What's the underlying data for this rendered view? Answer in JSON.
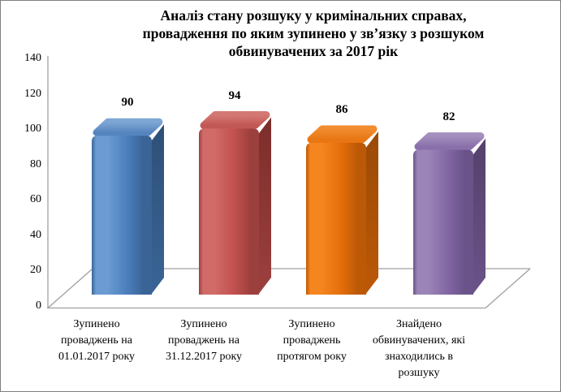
{
  "window": {
    "kind": "static-chart-image"
  },
  "chart_data": {
    "type": "bar",
    "effect": "3d",
    "title": "Аналіз стану розшуку у кримінальних справах, провадження по яким зупинено у зв’язку з розшуком обвинувачених за 2017 рік",
    "title_lines": [
      "Аналіз стану розшуку у кримінальних справах,",
      "провадження по яким зупинено у зв’язку з розшуком",
      "обвинувачених за 2017 рік"
    ],
    "categories": [
      "Зупинено проваджень на 01.01.2017 року",
      "Зупинено проваджень на 31.12.2017 року",
      "Зупинено проваджень протягом року",
      "Знайдено обвинувачених, які знаходились в розшуку"
    ],
    "values": [
      90,
      94,
      86,
      82
    ],
    "value_labels": [
      "90",
      "94",
      "86",
      "82"
    ],
    "xlabel": "",
    "ylabel": "",
    "ylim": [
      0,
      140
    ],
    "yticks": [
      0,
      20,
      40,
      60,
      80,
      100,
      120,
      140
    ],
    "grid": false,
    "legend": "none",
    "axis_line_color": "#A0A0A0",
    "text_color": "#000000",
    "bar_colors": [
      {
        "name": "blue",
        "front": "#4A7EBB",
        "light": "#6B9BD2",
        "dark": "#3A6496",
        "side": "#2E5077",
        "top": "#7FA7D4",
        "top_dark": "#5585BE"
      },
      {
        "name": "red",
        "front": "#C0504D",
        "light": "#D06B68",
        "dark": "#9C403E",
        "side": "#7C2D2B",
        "top": "#D47873",
        "top_dark": "#C25855"
      },
      {
        "name": "orange",
        "front": "#E36C09",
        "light": "#F5851F",
        "dark": "#BC5907",
        "side": "#9A4A06",
        "top": "#F18D2F",
        "top_dark": "#E87612"
      },
      {
        "name": "purple",
        "front": "#8064A2",
        "light": "#9B84B8",
        "dark": "#6A5389",
        "side": "#54416B",
        "top": "#A48FBE",
        "top_dark": "#8A70AA"
      }
    ]
  }
}
